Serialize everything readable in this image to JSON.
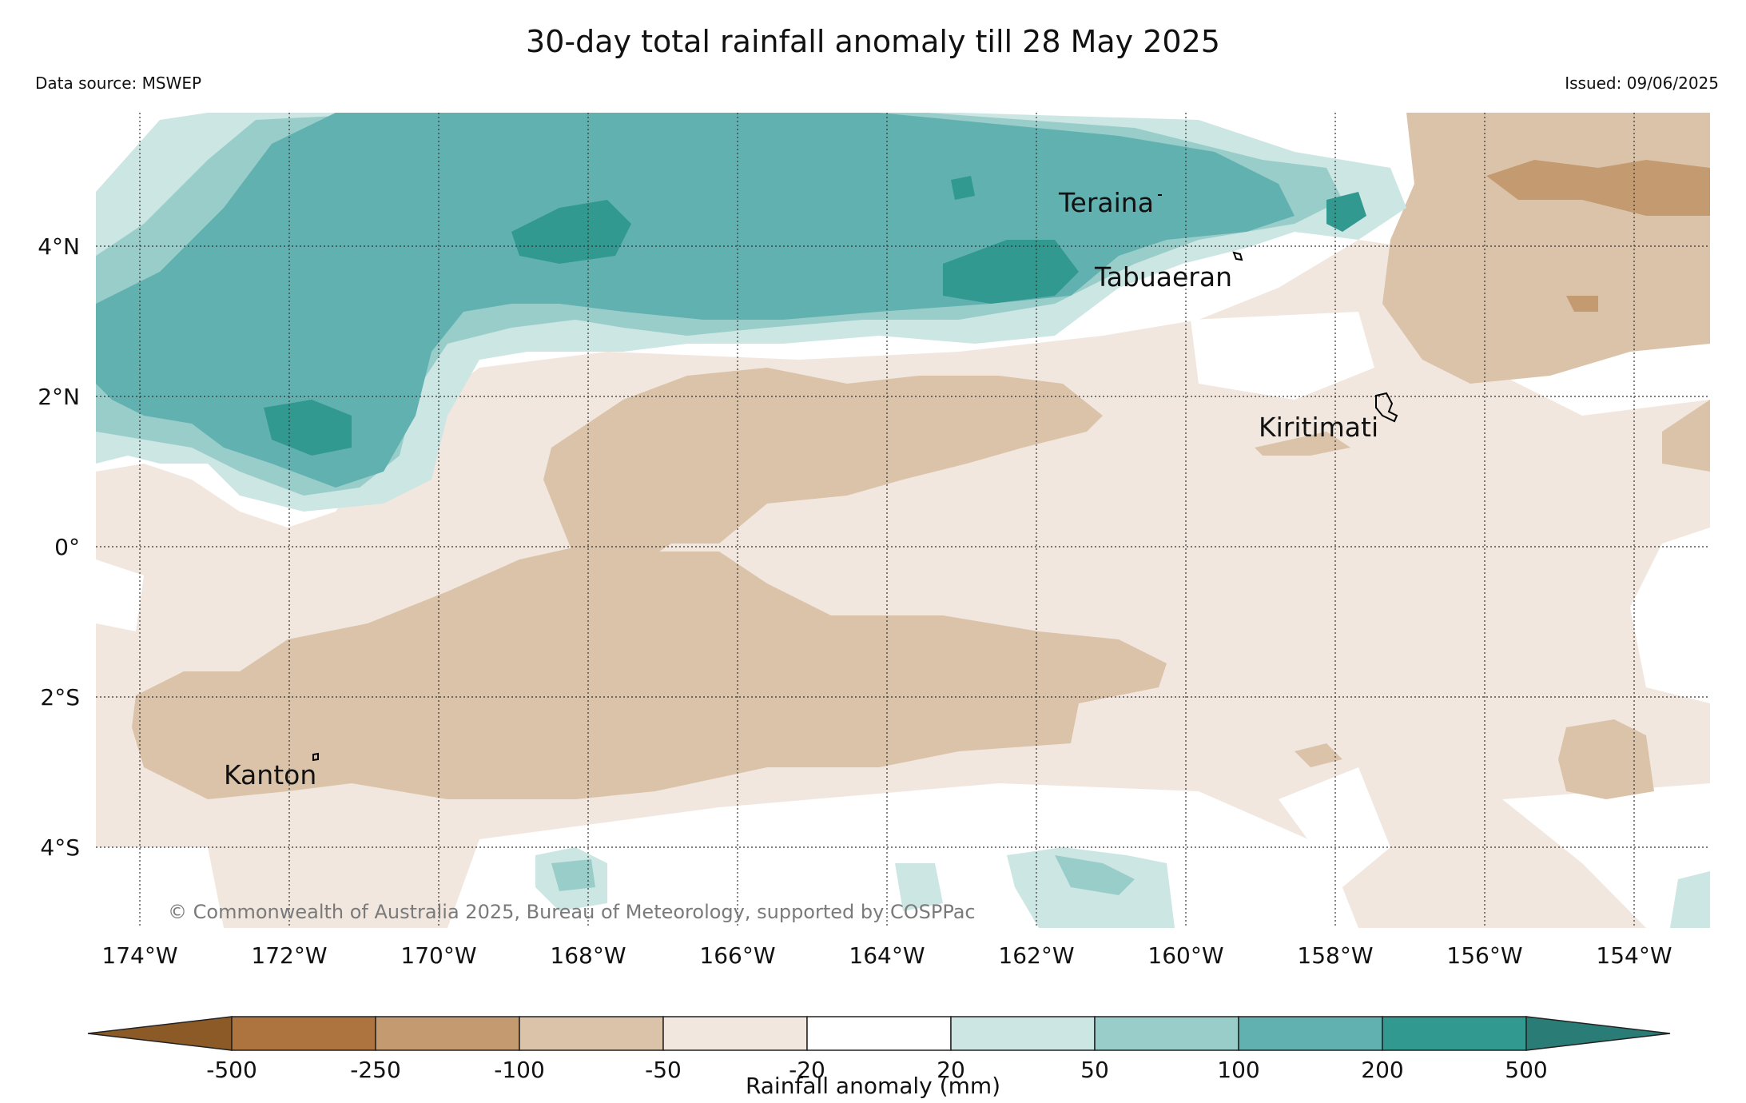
{
  "header": {
    "title": "30-day total rainfall anomaly till 28 May 2025",
    "data_source": "Data source: MSWEP",
    "issued": "Issued: 09/06/2025"
  },
  "map": {
    "copyright": "© Commonwealth of Australia 2025, Bureau of Meteorology, supported by COSPPac",
    "lon_ticks": [
      "174°W",
      "172°W",
      "170°W",
      "168°W",
      "166°W",
      "164°W",
      "162°W",
      "160°W",
      "158°W",
      "156°W",
      "154°W"
    ],
    "lat_ticks": [
      "4°N",
      "2°N",
      "0°",
      "2°S",
      "4°S"
    ],
    "places": [
      {
        "name": "Teraina"
      },
      {
        "name": "Tabuaeran"
      },
      {
        "name": "Kiritimati"
      },
      {
        "name": "Kanton"
      }
    ]
  },
  "colorbar": {
    "title": "Rainfall anomaly (mm)",
    "labels": [
      "-500",
      "-250",
      "-100",
      "-50",
      "-20",
      "20",
      "50",
      "100",
      "200",
      "500"
    ],
    "colors": [
      "#8c5a26",
      "#ad7440",
      "#c49a70",
      "#dbc3aa",
      "#f1e7de",
      "#ffffff",
      "#cce6e3",
      "#99cdca",
      "#61b1b0",
      "#31998f",
      "#2a7d77"
    ]
  }
}
